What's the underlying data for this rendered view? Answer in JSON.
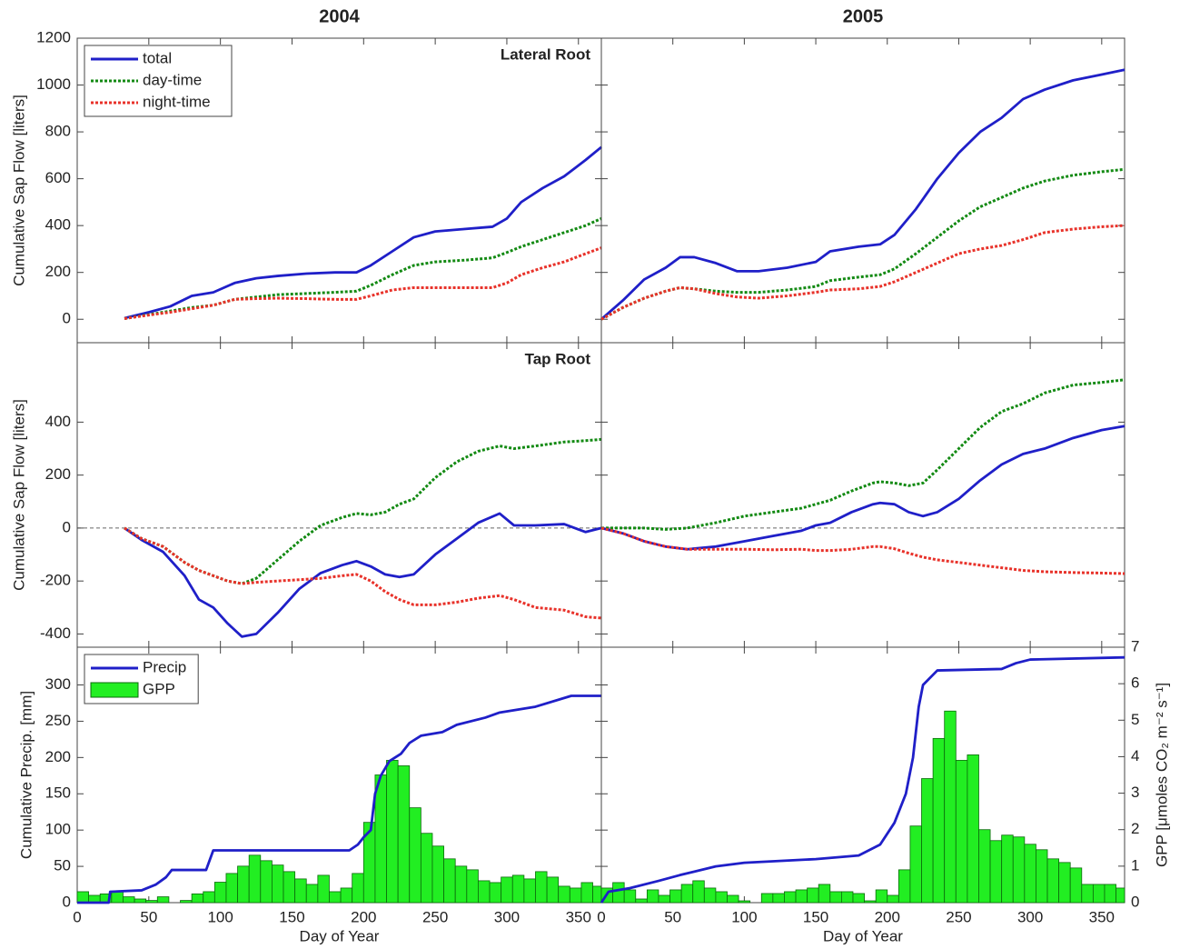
{
  "chart_data": [
    {
      "type": "line",
      "title": "2004",
      "annotation": "Lateral Root",
      "y_label": "Cumulative Sap Flow [liters]",
      "legend": "upper left",
      "xlim": [
        0,
        366
      ],
      "ylim": [
        -100,
        1200
      ],
      "yticks": [
        0,
        200,
        400,
        600,
        800,
        1000,
        1200
      ],
      "x": [
        33,
        50,
        65,
        80,
        95,
        110,
        125,
        140,
        160,
        180,
        195,
        205,
        220,
        235,
        250,
        270,
        290,
        300,
        310,
        325,
        340,
        355,
        366
      ],
      "series": [
        {
          "name": "total",
          "color": "#1f1fc8",
          "style": "solid",
          "values": [
            5,
            30,
            55,
            100,
            115,
            155,
            175,
            185,
            195,
            200,
            200,
            230,
            290,
            350,
            375,
            385,
            395,
            430,
            500,
            560,
            610,
            680,
            735
          ]
        },
        {
          "name": "day-time",
          "color": "#138a13",
          "style": "dotted",
          "values": [
            3,
            20,
            35,
            50,
            60,
            85,
            95,
            105,
            110,
            115,
            120,
            145,
            190,
            230,
            245,
            252,
            262,
            285,
            310,
            340,
            370,
            400,
            430
          ]
        },
        {
          "name": "night-time",
          "color": "#e8322a",
          "style": "dotted",
          "values": [
            3,
            18,
            30,
            45,
            60,
            85,
            88,
            90,
            88,
            85,
            85,
            100,
            125,
            135,
            135,
            135,
            135,
            155,
            190,
            220,
            245,
            280,
            305
          ]
        }
      ]
    },
    {
      "type": "line",
      "title": "2005",
      "xlim": [
        0,
        366
      ],
      "ylim": [
        -100,
        1200
      ],
      "x": [
        0,
        15,
        30,
        45,
        55,
        65,
        80,
        95,
        110,
        130,
        150,
        160,
        180,
        195,
        205,
        220,
        235,
        250,
        265,
        280,
        295,
        310,
        330,
        350,
        366
      ],
      "series": [
        {
          "color": "#1f1fc8",
          "style": "solid",
          "values": [
            0,
            80,
            170,
            220,
            265,
            265,
            240,
            205,
            205,
            220,
            245,
            290,
            310,
            320,
            360,
            470,
            600,
            710,
            800,
            860,
            940,
            980,
            1020,
            1045,
            1065
          ]
        },
        {
          "color": "#138a13",
          "style": "dotted",
          "values": [
            0,
            50,
            90,
            120,
            135,
            130,
            120,
            115,
            115,
            125,
            140,
            165,
            180,
            190,
            215,
            280,
            350,
            420,
            480,
            520,
            560,
            590,
            615,
            630,
            640
          ]
        },
        {
          "color": "#e8322a",
          "style": "dotted",
          "values": [
            0,
            50,
            90,
            120,
            135,
            130,
            110,
            95,
            90,
            100,
            115,
            125,
            130,
            140,
            160,
            200,
            240,
            280,
            300,
            315,
            340,
            370,
            385,
            395,
            400
          ]
        }
      ]
    },
    {
      "type": "line",
      "annotation": "Tap Root",
      "y_label": "Cumulative Sap Flow [liters]",
      "zero_line": true,
      "xlim": [
        0,
        366
      ],
      "ylim": [
        -450,
        700
      ],
      "yticks": [
        -400,
        -200,
        0,
        200,
        400
      ],
      "x": [
        33,
        45,
        60,
        75,
        85,
        95,
        105,
        115,
        125,
        140,
        155,
        170,
        185,
        195,
        205,
        215,
        225,
        235,
        250,
        265,
        280,
        295,
        305,
        320,
        340,
        355,
        366
      ],
      "series": [
        {
          "color": "#1f1fc8",
          "style": "solid",
          "values": [
            0,
            -45,
            -90,
            -180,
            -270,
            -300,
            -360,
            -410,
            -400,
            -320,
            -230,
            -170,
            -140,
            -125,
            -145,
            -175,
            -185,
            -175,
            -100,
            -40,
            20,
            55,
            10,
            10,
            15,
            -15,
            0
          ]
        },
        {
          "color": "#138a13",
          "style": "dotted",
          "values": [
            0,
            -40,
            -70,
            -130,
            -160,
            -180,
            -200,
            -210,
            -190,
            -120,
            -50,
            10,
            40,
            55,
            50,
            60,
            90,
            110,
            190,
            250,
            290,
            310,
            300,
            310,
            325,
            330,
            335
          ]
        },
        {
          "color": "#e8322a",
          "style": "dotted",
          "values": [
            0,
            -40,
            -70,
            -130,
            -160,
            -180,
            -200,
            -210,
            -205,
            -200,
            -195,
            -190,
            -180,
            -175,
            -200,
            -240,
            -270,
            -290,
            -290,
            -280,
            -265,
            -255,
            -270,
            -300,
            -310,
            -335,
            -340
          ]
        }
      ]
    },
    {
      "type": "line",
      "zero_line": true,
      "xlim": [
        0,
        366
      ],
      "ylim": [
        -450,
        700
      ],
      "x": [
        0,
        15,
        30,
        45,
        60,
        80,
        100,
        120,
        140,
        150,
        160,
        175,
        190,
        195,
        205,
        215,
        225,
        235,
        250,
        265,
        280,
        295,
        310,
        330,
        350,
        366
      ],
      "series": [
        {
          "color": "#1f1fc8",
          "style": "solid",
          "values": [
            0,
            -20,
            -50,
            -70,
            -80,
            -70,
            -50,
            -30,
            -10,
            10,
            20,
            60,
            90,
            95,
            90,
            60,
            45,
            60,
            110,
            180,
            240,
            280,
            300,
            340,
            370,
            385
          ]
        },
        {
          "color": "#138a13",
          "style": "dotted",
          "values": [
            0,
            0,
            0,
            -5,
            0,
            20,
            45,
            60,
            75,
            90,
            105,
            140,
            170,
            175,
            170,
            160,
            170,
            220,
            300,
            380,
            440,
            470,
            510,
            540,
            550,
            560
          ]
        },
        {
          "color": "#e8322a",
          "style": "dotted",
          "values": [
            0,
            -20,
            -50,
            -70,
            -80,
            -80,
            -80,
            -82,
            -80,
            -85,
            -85,
            -80,
            -70,
            -70,
            -78,
            -95,
            -110,
            -120,
            -130,
            -140,
            -150,
            -160,
            -165,
            -168,
            -170,
            -172
          ]
        }
      ]
    },
    {
      "type": "line",
      "y_label": "Cumulative Precip. [mm]",
      "x_label": "Day of Year",
      "legend": "upper left",
      "xlim": [
        0,
        366
      ],
      "ylim": [
        0,
        352
      ],
      "yticks": [
        0,
        50,
        100,
        150,
        200,
        250,
        300
      ],
      "y2lim": [
        0,
        7
      ],
      "xticks": [
        0,
        50,
        100,
        150,
        200,
        250,
        300,
        350
      ],
      "series": [
        {
          "name": "Precip",
          "color": "#1f1fc8",
          "style": "solid",
          "x": [
            0,
            22,
            23,
            45,
            55,
            62,
            66,
            90,
            95,
            190,
            196,
            200,
            205,
            208,
            212,
            218,
            226,
            232,
            240,
            255,
            265,
            285,
            295,
            320,
            345,
            366
          ],
          "values": [
            0,
            0,
            15,
            17,
            25,
            35,
            45,
            45,
            72,
            72,
            80,
            90,
            100,
            150,
            175,
            195,
            205,
            220,
            230,
            235,
            245,
            255,
            262,
            270,
            285,
            285
          ]
        },
        {
          "name": "GPP",
          "type": "bar",
          "axis": "y2",
          "color": "#22ee22",
          "bins": [
            0,
            8,
            16,
            24,
            32,
            40,
            48,
            56,
            64,
            72,
            80,
            88,
            96,
            104,
            112,
            120,
            128,
            136,
            144,
            152,
            160,
            168,
            176,
            184,
            192,
            200,
            208,
            216,
            224,
            232,
            240,
            248,
            256,
            264,
            272,
            280,
            288,
            296,
            304,
            312,
            320,
            328,
            336,
            344,
            352,
            360,
            368
          ],
          "values": [
            0.3,
            0.2,
            0.24,
            0.3,
            0.16,
            0.1,
            0.06,
            0.16,
            0,
            0.06,
            0.24,
            0.3,
            0.56,
            0.8,
            1.0,
            1.3,
            1.15,
            1.03,
            0.85,
            0.65,
            0.5,
            0.75,
            0.3,
            0.4,
            0.8,
            2.2,
            3.5,
            3.9,
            3.75,
            2.6,
            1.9,
            1.55,
            1.2,
            1.0,
            0.9,
            0.6,
            0.55,
            0.7,
            0.75,
            0.65,
            0.85,
            0.7,
            0.45,
            0.4,
            0.55,
            0.45
          ]
        }
      ]
    },
    {
      "type": "line",
      "x_label": "Day of Year",
      "y2_label": "GPP [μmoles CO₂ m⁻² s⁻¹]",
      "xlim": [
        0,
        366
      ],
      "ylim": [
        0,
        352
      ],
      "y2lim": [
        0,
        7
      ],
      "y2ticks": [
        0,
        1,
        2,
        3,
        4,
        5,
        6,
        7
      ],
      "xticks": [
        0,
        50,
        100,
        150,
        200,
        250,
        300,
        350
      ],
      "series": [
        {
          "color": "#1f1fc8",
          "style": "solid",
          "x": [
            0,
            5,
            20,
            40,
            55,
            80,
            100,
            150,
            180,
            195,
            205,
            213,
            218,
            222,
            225,
            235,
            280,
            290,
            300,
            366
          ],
          "values": [
            0,
            15,
            20,
            30,
            38,
            50,
            55,
            60,
            65,
            80,
            110,
            150,
            200,
            270,
            300,
            320,
            322,
            330,
            335,
            338
          ]
        },
        {
          "type": "bar",
          "axis": "y2",
          "color": "#22ee22",
          "bins": [
            0,
            8,
            16,
            24,
            32,
            40,
            48,
            56,
            64,
            72,
            80,
            88,
            96,
            104,
            112,
            120,
            128,
            136,
            144,
            152,
            160,
            168,
            176,
            184,
            192,
            200,
            208,
            216,
            224,
            232,
            240,
            248,
            256,
            264,
            272,
            280,
            288,
            296,
            304,
            312,
            320,
            328,
            336,
            344,
            352,
            360,
            368
          ],
          "values": [
            0.4,
            0.55,
            0.35,
            0.1,
            0.35,
            0.2,
            0.35,
            0.5,
            0.6,
            0.4,
            0.3,
            0.2,
            0.05,
            0,
            0.25,
            0.25,
            0.3,
            0.35,
            0.4,
            0.5,
            0.3,
            0.3,
            0.25,
            0.05,
            0.35,
            0.2,
            0.9,
            2.1,
            3.4,
            4.5,
            5.25,
            3.9,
            4.05,
            2.0,
            1.7,
            1.85,
            1.8,
            1.6,
            1.45,
            1.2,
            1.1,
            0.95,
            0.5,
            0.5,
            0.5,
            0.4
          ]
        }
      ]
    }
  ]
}
